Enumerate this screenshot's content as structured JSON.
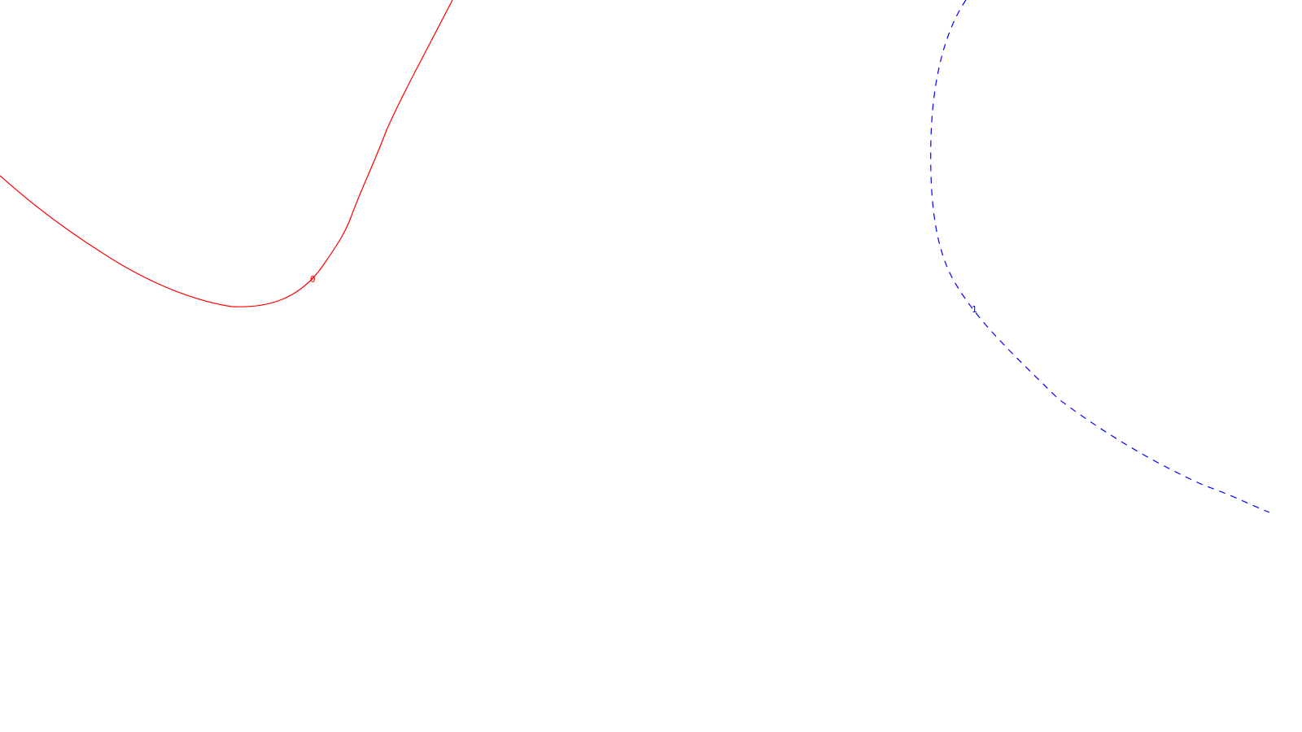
{
  "background_color": "#ffffff",
  "curves": [
    {
      "label": "0",
      "color": "#ff0000",
      "line_style": "solid"
    },
    {
      "label": "1",
      "color": "#0000ff",
      "line_style": "dashed"
    }
  ]
}
